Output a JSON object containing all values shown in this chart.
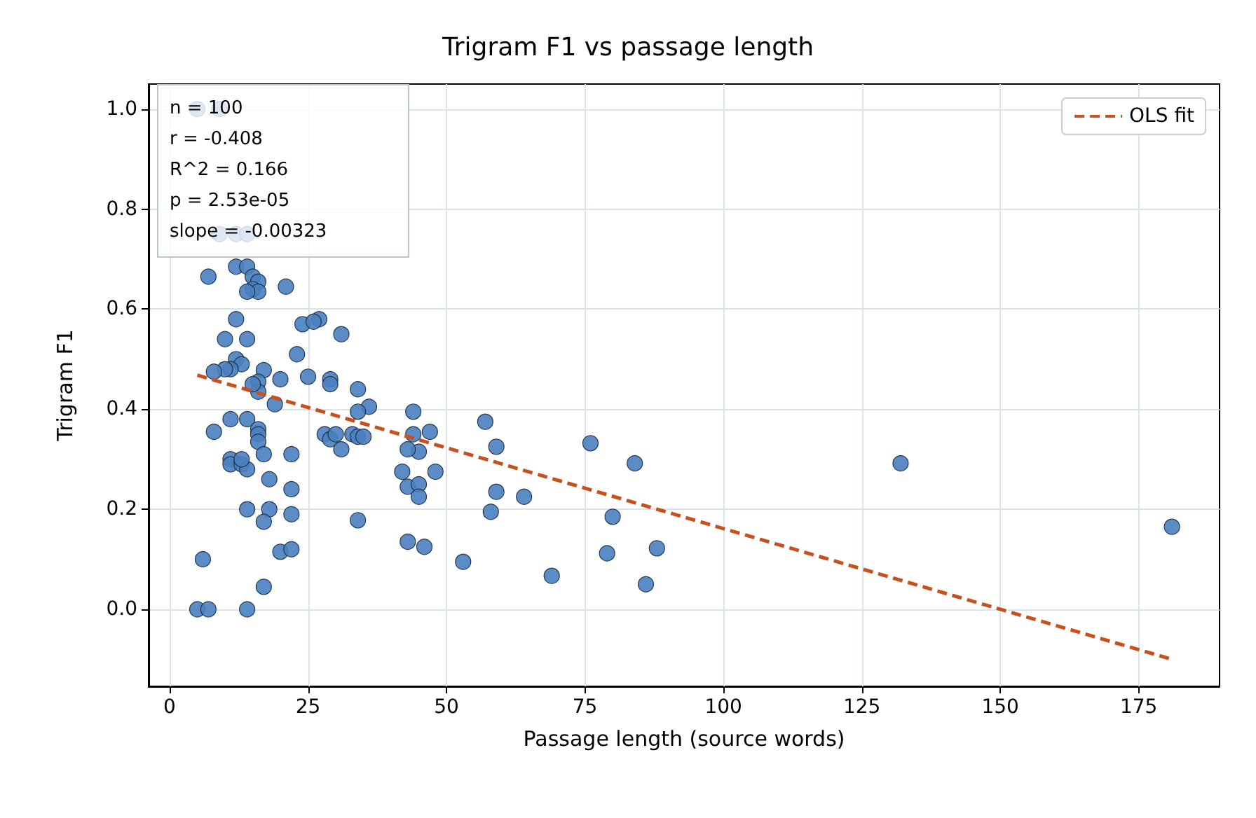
{
  "chart_data": {
    "type": "scatter",
    "title": "Trigram F1 vs passage length",
    "xlabel": "Passage length (source words)",
    "ylabel": "Trigram F1",
    "annotations": [
      "n = 100",
      "r = -0.408",
      "R^2 = 0.166",
      "p = 2.53e-05",
      "slope = -0.00323"
    ],
    "xlim": [
      -3.8,
      189.6
    ],
    "ylim": [
      -0.154,
      1.05
    ],
    "xticks": [
      0,
      25,
      50,
      75,
      100,
      125,
      150,
      175
    ],
    "yticks": [
      {
        "value": 0,
        "label": "0.0"
      },
      {
        "value": 0.2,
        "label": "0.2"
      },
      {
        "value": 0.4,
        "label": "0.4"
      },
      {
        "value": 0.6,
        "label": "0.6"
      },
      {
        "value": 0.8,
        "label": "0.8"
      },
      {
        "value": 1,
        "label": "1.0"
      }
    ],
    "grid": true,
    "legend": "top right",
    "marker": "circle",
    "series": [
      {
        "color": "#4a7fbf",
        "x": [
          5,
          9,
          9,
          12,
          14,
          7,
          12,
          14,
          15,
          16,
          15,
          16,
          14,
          21,
          27,
          12,
          24,
          31,
          10,
          14,
          23,
          12,
          13,
          11,
          10,
          8,
          17,
          16,
          16,
          20,
          25,
          29,
          29,
          34,
          19,
          36,
          34,
          44,
          57,
          11,
          14,
          8,
          16,
          16,
          16,
          28,
          29,
          30,
          33,
          34,
          44,
          47,
          45,
          43,
          31,
          59,
          76,
          84,
          132,
          11,
          11,
          13,
          14,
          17,
          22,
          18,
          42,
          48,
          43,
          45,
          45,
          59,
          64,
          22,
          14,
          18,
          22,
          17,
          34,
          58,
          80,
          181,
          43,
          46,
          88,
          79,
          20,
          22,
          6,
          53,
          69,
          86,
          17,
          5,
          7,
          14,
          13,
          15,
          35,
          26
        ],
        "values": [
          1.0,
          1.0,
          0.75,
          0.75,
          0.75,
          0.665,
          0.685,
          0.685,
          0.665,
          0.655,
          0.64,
          0.635,
          0.635,
          0.645,
          0.58,
          0.58,
          0.57,
          0.55,
          0.54,
          0.54,
          0.51,
          0.5,
          0.49,
          0.48,
          0.48,
          0.475,
          0.478,
          0.455,
          0.435,
          0.46,
          0.465,
          0.46,
          0.45,
          0.44,
          0.41,
          0.405,
          0.395,
          0.395,
          0.375,
          0.38,
          0.38,
          0.355,
          0.36,
          0.35,
          0.335,
          0.35,
          0.34,
          0.35,
          0.35,
          0.345,
          0.35,
          0.355,
          0.315,
          0.32,
          0.32,
          0.325,
          0.332,
          0.292,
          0.292,
          0.3,
          0.29,
          0.29,
          0.28,
          0.31,
          0.31,
          0.26,
          0.275,
          0.275,
          0.245,
          0.25,
          0.225,
          0.235,
          0.225,
          0.24,
          0.2,
          0.2,
          0.19,
          0.175,
          0.178,
          0.195,
          0.185,
          0.165,
          0.135,
          0.125,
          0.122,
          0.112,
          0.115,
          0.12,
          0.1,
          0.095,
          0.067,
          0.05,
          0.045,
          0,
          0,
          0,
          0.3,
          0.45,
          0.345,
          0.575
        ]
      },
      {
        "type": "line",
        "name": "OLS fit",
        "color": "#c8501e",
        "line_style": "dashed",
        "marker": "none",
        "x": [
          5,
          181
        ],
        "values": [
          0.468,
          -0.1
        ]
      }
    ]
  }
}
